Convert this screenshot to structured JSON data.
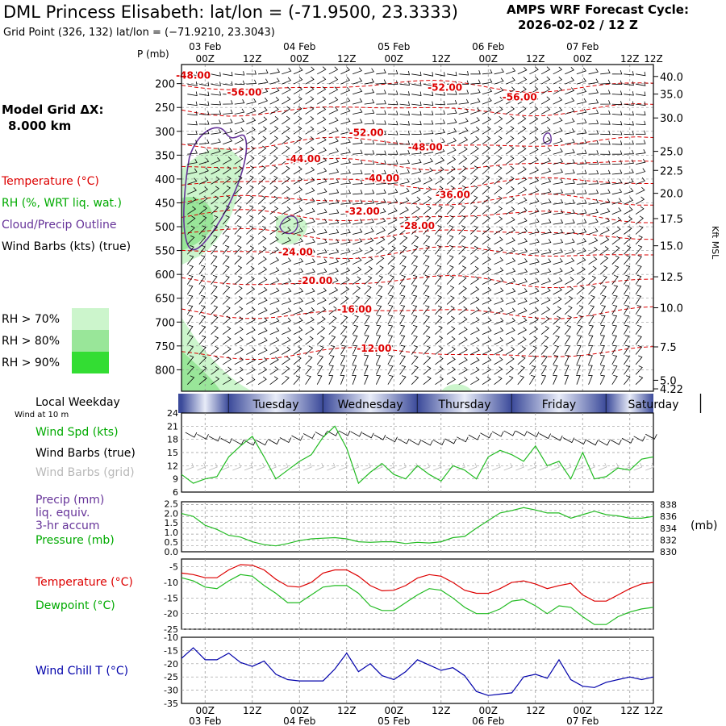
{
  "header": {
    "title": "DML Princess Elisabeth:  lat/lon = (-71.9500, 23.3333)",
    "grid_point": "Grid Point (326, 132) lat/lon = (−71.9210, 23.3043)",
    "cycle_line1": "AMPS WRF Forecast Cycle:",
    "cycle_line2": "2026-02-02 / 12  Z"
  },
  "legend": {
    "model_grid_line1": "Model Grid ΔX:",
    "model_grid_line2": "8.000 km",
    "temperature": "Temperature (°C)",
    "rh": "RH (%, WRT liq. wat.)",
    "cloud": "Cloud/Precip Outline",
    "wind_barbs": "Wind Barbs (kts) (true)",
    "rh70": "RH > 70%",
    "rh80": "RH > 80%",
    "rh90": "RH > 90%",
    "rh_colors": [
      "#ccf5cc",
      "#99e699",
      "#33dd33"
    ],
    "pressure_axis_label": "P (mb)",
    "height_axis_label": "Kft MSL"
  },
  "time_axis": {
    "date_labels": [
      "03 Feb",
      "04 Feb",
      "05 Feb",
      "06 Feb",
      "07 Feb"
    ],
    "hour_labels": [
      "00Z",
      "12Z",
      "00Z",
      "12Z",
      "00Z",
      "12Z",
      "00Z",
      "12Z",
      "00Z",
      "12Z"
    ]
  },
  "weekday_strip": {
    "label": "Local Weekday",
    "days": [
      "Tuesday",
      "Wednesday",
      "Thursday",
      "Friday",
      "Saturday"
    ]
  },
  "panel_wind": {
    "sub_label": "Wind at 10 m",
    "wind_spd_label": "Wind Spd (kts)",
    "wind_barbs_true_label": "Wind Barbs (true)",
    "wind_barbs_grid_label": "Wind Barbs (grid)"
  },
  "panel_pressure": {
    "precip_label": "Precip (mm)",
    "liq_label": "liq. equiv.",
    "accum_label": "3-hr accum",
    "pressure_label": "Pressure (mb)",
    "right_unit": "(mb)"
  },
  "panel_temp": {
    "temperature_label": "Temperature (°C)",
    "dewpoint_label": "Dewpoint (°C)"
  },
  "panel_chill": {
    "label": "Wind Chill T (°C)"
  },
  "colors": {
    "temperature": "#dd0000",
    "green": "#22bb22",
    "purple": "#663399",
    "blue": "#0000aa",
    "grid": "#999999"
  },
  "chart_data": [
    {
      "type": "line",
      "name": "time-height cross-section",
      "pressure_ticks": [
        200,
        250,
        300,
        350,
        400,
        450,
        500,
        550,
        600,
        650,
        700,
        750,
        800
      ],
      "height_ticks_kft": [
        "40.0",
        "35.0",
        "30.0",
        "25.0",
        "22.5",
        "20.0",
        "17.5",
        "15.0",
        "12.5",
        "10.0",
        "7.5",
        "5.0",
        "4.22"
      ],
      "height_tick_pressures": [
        185,
        222,
        272,
        342,
        382,
        430,
        483,
        540,
        605,
        670,
        752,
        822,
        840
      ],
      "ylim": [
        160,
        845
      ],
      "xlim_hours": [
        -6,
        114
      ],
      "isotherm_labels": [
        {
          "text": "-48.00",
          "t": -3,
          "p": 190
        },
        {
          "text": "-56.00",
          "t": 10,
          "p": 225
        },
        {
          "text": "-52.00",
          "t": 61,
          "p": 215
        },
        {
          "text": "-56.00",
          "t": 80,
          "p": 235
        },
        {
          "text": "-52.00",
          "t": 41,
          "p": 310
        },
        {
          "text": "-48.00",
          "t": 56,
          "p": 340
        },
        {
          "text": "-44.00",
          "t": 25,
          "p": 365
        },
        {
          "text": "-40.00",
          "t": 45,
          "p": 405
        },
        {
          "text": "-36.00",
          "t": 63,
          "p": 440
        },
        {
          "text": "-32.00",
          "t": 40,
          "p": 475
        },
        {
          "text": "-28.00",
          "t": 54,
          "p": 505
        },
        {
          "text": "-24.00",
          "t": 23,
          "p": 560
        },
        {
          "text": "-20.00",
          "t": 28,
          "p": 620
        },
        {
          "text": "-16.00",
          "t": 38,
          "p": 680
        },
        {
          "text": "-12.00",
          "t": 43,
          "p": 762
        }
      ]
    },
    {
      "type": "line",
      "name": "10 m wind speed",
      "x_hours": [
        -6,
        -3,
        0,
        3,
        6,
        9,
        12,
        15,
        18,
        21,
        24,
        27,
        30,
        33,
        36,
        39,
        42,
        45,
        48,
        51,
        54,
        57,
        60,
        63,
        66,
        69,
        72,
        75,
        78,
        81,
        84,
        87,
        90,
        93,
        96,
        99,
        102,
        105,
        108,
        111,
        114
      ],
      "values": [
        10,
        8,
        9,
        9.5,
        14,
        16.5,
        18.7,
        14,
        9,
        11,
        13,
        14.5,
        18.5,
        21,
        16,
        8,
        10.5,
        12.5,
        10,
        9,
        12,
        10,
        8.5,
        12,
        11,
        9,
        14,
        15.5,
        14.5,
        13,
        16.5,
        12,
        13,
        9,
        15,
        9,
        9.5,
        11.5,
        11,
        13.5,
        14
      ],
      "yticks": [
        6,
        9,
        12,
        15,
        18,
        21,
        24
      ],
      "ylim": [
        6,
        24
      ]
    },
    {
      "type": "line",
      "name": "surface pressure",
      "x_hours": [
        -6,
        -3,
        0,
        3,
        6,
        9,
        12,
        15,
        18,
        21,
        24,
        27,
        30,
        33,
        36,
        39,
        42,
        45,
        48,
        51,
        54,
        57,
        60,
        63,
        66,
        69,
        72,
        75,
        78,
        81,
        84,
        87,
        90,
        93,
        96,
        99,
        102,
        105,
        108,
        111,
        114
      ],
      "values": [
        836.5,
        836,
        834.5,
        833.8,
        832.8,
        832.5,
        831.7,
        831.2,
        831,
        831.4,
        831.9,
        832.2,
        832.3,
        832.4,
        832.2,
        831.7,
        831.6,
        831.7,
        831.7,
        831.4,
        831.6,
        831.5,
        831.7,
        832.4,
        832.6,
        834,
        835.3,
        836.6,
        837,
        837.5,
        837.1,
        836.6,
        836.6,
        835.7,
        836.3,
        836.9,
        836.3,
        836.1,
        835.7,
        835.7,
        836
      ],
      "left_yticks": [
        "0.0",
        "0.5",
        "1.0",
        "1.5",
        "2.0",
        "2.5"
      ],
      "right_yticks": [
        830,
        832,
        834,
        836,
        838
      ],
      "ylim": [
        830,
        838.5
      ]
    },
    {
      "type": "line",
      "name": "temperature and dewpoint",
      "x_hours": [
        -6,
        -3,
        0,
        3,
        6,
        9,
        12,
        15,
        18,
        21,
        24,
        27,
        30,
        33,
        36,
        39,
        42,
        45,
        48,
        51,
        54,
        57,
        60,
        63,
        66,
        69,
        72,
        75,
        78,
        81,
        84,
        87,
        90,
        93,
        96,
        99,
        102,
        105,
        108,
        111,
        114
      ],
      "series": [
        {
          "name": "Temperature",
          "values": [
            -7,
            -7.5,
            -8.5,
            -8.5,
            -6,
            -4.3,
            -4.5,
            -6,
            -9,
            -11.2,
            -11.5,
            -10,
            -7,
            -6,
            -6,
            -8,
            -11,
            -12.7,
            -12.5,
            -11,
            -8.6,
            -7.5,
            -8,
            -10,
            -12.5,
            -13.5,
            -13.5,
            -12,
            -10,
            -9.5,
            -10.5,
            -12,
            -11,
            -10.3,
            -14,
            -16,
            -16,
            -14,
            -12,
            -10.5,
            -10
          ]
        },
        {
          "name": "Dewpoint",
          "values": [
            -8.5,
            -9.5,
            -11.5,
            -12,
            -9.5,
            -7.5,
            -8,
            -11,
            -13.5,
            -16.5,
            -16.5,
            -14,
            -11.5,
            -11,
            -11,
            -13.5,
            -17.5,
            -19,
            -19,
            -16.5,
            -14,
            -12,
            -12.5,
            -15,
            -18,
            -20,
            -20,
            -18.5,
            -16,
            -15.5,
            -17.5,
            -20,
            -17.5,
            -18,
            -21,
            -23.5,
            -23.5,
            -21,
            -19.5,
            -18.5,
            -18
          ]
        }
      ],
      "yticks": [
        -25,
        -20,
        -15,
        -10,
        -5
      ],
      "ylim": [
        -25,
        -2.5
      ]
    },
    {
      "type": "line",
      "name": "wind chill temperature",
      "x_hours": [
        -6,
        -3,
        0,
        3,
        6,
        9,
        12,
        15,
        18,
        21,
        24,
        27,
        30,
        33,
        36,
        39,
        42,
        45,
        48,
        51,
        54,
        57,
        60,
        63,
        66,
        69,
        72,
        75,
        78,
        81,
        84,
        87,
        90,
        93,
        96,
        99,
        102,
        105,
        108,
        111,
        114
      ],
      "values": [
        -18,
        -14,
        -18.5,
        -18.5,
        -16,
        -19.5,
        -21,
        -19,
        -24,
        -26,
        -26.5,
        -26.5,
        -26.5,
        -22,
        -16,
        -23,
        -20,
        -24.5,
        -26,
        -23,
        -18.5,
        -20.5,
        -22.5,
        -21.5,
        -24.5,
        -30.5,
        -32,
        -31.5,
        -31,
        -25,
        -24,
        -25.5,
        -18.5,
        -26,
        -28.5,
        -29,
        -27,
        -26,
        -25,
        -26,
        -25
      ],
      "yticks": [
        -35,
        -30,
        -25,
        -20,
        -15,
        -10
      ],
      "ylim": [
        -35,
        -10
      ]
    }
  ]
}
